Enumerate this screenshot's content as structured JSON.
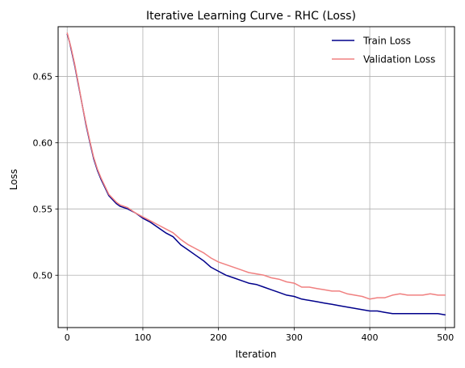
{
  "chart_data": {
    "type": "line",
    "title": "Iterative Learning Curve - RHC (Loss)",
    "xlabel": "Iteration",
    "ylabel": "Loss",
    "xlim": [
      -12,
      512
    ],
    "ylim": [
      0.4605,
      0.6875
    ],
    "xticks": [
      0,
      100,
      200,
      300,
      400,
      500
    ],
    "yticks": [
      0.5,
      0.55,
      0.6,
      0.65
    ],
    "xtick_labels": [
      "0",
      "100",
      "200",
      "300",
      "400",
      "500"
    ],
    "ytick_labels": [
      "0.50",
      "0.55",
      "0.60",
      "0.65"
    ],
    "grid": true,
    "legend_position": "top-right",
    "series": [
      {
        "name": "Train Loss",
        "color": "#00008b",
        "x": [
          0,
          3,
          5,
          10,
          15,
          20,
          25,
          30,
          35,
          40,
          45,
          50,
          55,
          60,
          65,
          70,
          75,
          80,
          90,
          100,
          110,
          120,
          130,
          140,
          150,
          160,
          170,
          180,
          190,
          200,
          210,
          220,
          230,
          240,
          250,
          260,
          270,
          280,
          290,
          300,
          310,
          320,
          330,
          340,
          350,
          360,
          370,
          380,
          390,
          400,
          410,
          420,
          430,
          440,
          450,
          460,
          470,
          480,
          490,
          500
        ],
        "y": [
          0.682,
          0.676,
          0.671,
          0.658,
          0.643,
          0.628,
          0.613,
          0.6,
          0.588,
          0.579,
          0.572,
          0.566,
          0.56,
          0.557,
          0.554,
          0.552,
          0.551,
          0.55,
          0.547,
          0.543,
          0.54,
          0.536,
          0.532,
          0.529,
          0.523,
          0.519,
          0.515,
          0.511,
          0.506,
          0.503,
          0.5,
          0.498,
          0.496,
          0.494,
          0.493,
          0.491,
          0.489,
          0.487,
          0.485,
          0.484,
          0.482,
          0.481,
          0.48,
          0.479,
          0.478,
          0.477,
          0.476,
          0.475,
          0.474,
          0.473,
          0.473,
          0.472,
          0.471,
          0.471,
          0.471,
          0.471,
          0.471,
          0.471,
          0.471,
          0.47
        ]
      },
      {
        "name": "Validation Loss",
        "color": "#f08080",
        "x": [
          0,
          3,
          5,
          10,
          15,
          20,
          25,
          30,
          35,
          40,
          45,
          50,
          55,
          60,
          65,
          70,
          75,
          80,
          90,
          100,
          110,
          120,
          130,
          140,
          150,
          160,
          170,
          180,
          190,
          200,
          210,
          220,
          230,
          240,
          250,
          260,
          270,
          280,
          290,
          300,
          310,
          320,
          330,
          340,
          350,
          360,
          370,
          380,
          390,
          400,
          410,
          420,
          430,
          440,
          450,
          460,
          470,
          480,
          490,
          500
        ],
        "y": [
          0.683,
          0.676,
          0.672,
          0.659,
          0.644,
          0.628,
          0.614,
          0.601,
          0.589,
          0.58,
          0.573,
          0.567,
          0.561,
          0.558,
          0.555,
          0.553,
          0.552,
          0.551,
          0.547,
          0.544,
          0.541,
          0.538,
          0.535,
          0.532,
          0.527,
          0.523,
          0.52,
          0.517,
          0.513,
          0.51,
          0.508,
          0.506,
          0.504,
          0.502,
          0.501,
          0.5,
          0.498,
          0.497,
          0.495,
          0.494,
          0.491,
          0.491,
          0.49,
          0.489,
          0.488,
          0.488,
          0.486,
          0.485,
          0.484,
          0.482,
          0.483,
          0.483,
          0.485,
          0.486,
          0.485,
          0.485,
          0.485,
          0.486,
          0.485,
          0.485
        ]
      }
    ]
  }
}
